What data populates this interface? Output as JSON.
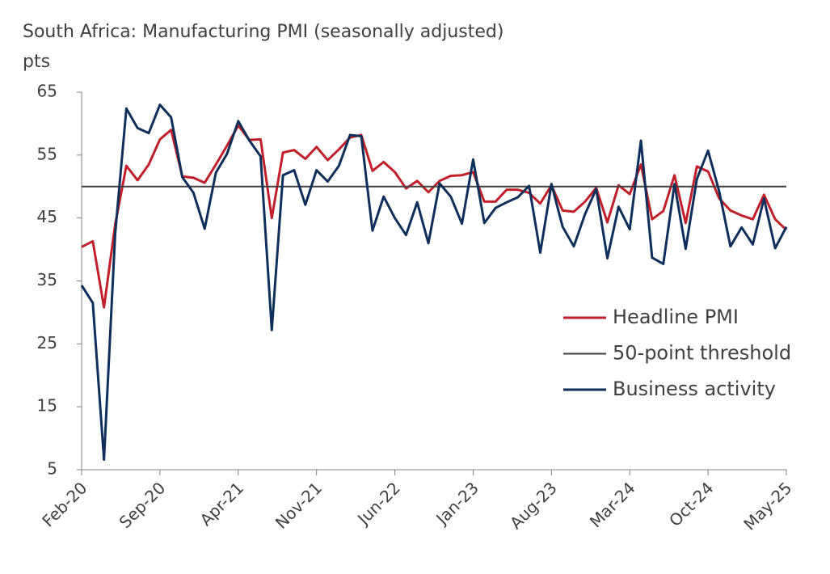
{
  "chart_data": {
    "type": "line",
    "title": "South Africa: Manufacturing PMI (seasonally adjusted)",
    "y_label": "pts",
    "categories": [
      "Feb-20",
      null,
      null,
      null,
      null,
      null,
      null,
      "Sep-20",
      null,
      null,
      null,
      null,
      null,
      null,
      "Apr-21",
      null,
      null,
      null,
      null,
      null,
      null,
      "Nov-21",
      null,
      null,
      null,
      null,
      null,
      null,
      "Jun-22",
      null,
      null,
      null,
      null,
      null,
      null,
      "Jan-23",
      null,
      null,
      null,
      null,
      null,
      null,
      "Aug-23",
      null,
      null,
      null,
      null,
      null,
      null,
      "Mar-24",
      null,
      null,
      null,
      null,
      null,
      null,
      "Oct-24",
      null,
      null,
      null,
      null,
      null,
      null,
      "May-25"
    ],
    "series": [
      {
        "name": "Headline PMI",
        "color": "#c0202a",
        "values": [
          40.4,
          41.3,
          30.8,
          44,
          53.3,
          51,
          53.5,
          57.5,
          59,
          51.6,
          51.4,
          50.6,
          53.5,
          56.5,
          59.7,
          57.4,
          57.5,
          45,
          55.4,
          55.8,
          54.4,
          56.3,
          54.2,
          55.9,
          57.8,
          58.2,
          52.5,
          53.9,
          52.3,
          49.7,
          50.9,
          49.1,
          50.9,
          51.7,
          51.8,
          52.3,
          47.6,
          47.6,
          49.5,
          49.5,
          49,
          47.3,
          50.2,
          46.2,
          46,
          47.6,
          49.8,
          44.3,
          50.2,
          48.8,
          53.5,
          44.8,
          46.1,
          51.8,
          44.2,
          53.2,
          52.4,
          48.1,
          46.2,
          45.4,
          44.8,
          48.7,
          44.8,
          43.1
        ]
      },
      {
        "name": "50-point threshold",
        "color": "#404040",
        "values": [
          50,
          50,
          50,
          50,
          50,
          50,
          50,
          50,
          50,
          50,
          50,
          50,
          50,
          50,
          50,
          50,
          50,
          50,
          50,
          50,
          50,
          50,
          50,
          50,
          50,
          50,
          50,
          50,
          50,
          50,
          50,
          50,
          50,
          50,
          50,
          50,
          50,
          50,
          50,
          50,
          50,
          50,
          50,
          50,
          50,
          50,
          50,
          50,
          50,
          50,
          50,
          50,
          50,
          50,
          50,
          50,
          50,
          50,
          50,
          50,
          50,
          50,
          50,
          50
        ]
      },
      {
        "name": "Business activity",
        "color": "#0d2f5a",
        "values": [
          34.3,
          31.5,
          6.6,
          42.5,
          62.4,
          59.3,
          58.5,
          63,
          61,
          51.5,
          49,
          43.3,
          52.2,
          55.2,
          60.4,
          57.3,
          54.8,
          27.2,
          51.8,
          52.6,
          47.1,
          52.6,
          50.8,
          53.3,
          58.2,
          58,
          43,
          48.4,
          45,
          42.3,
          47.5,
          41,
          50.5,
          48.4,
          44.1,
          54.3,
          44.2,
          46.6,
          47.5,
          48.3,
          50.1,
          39.5,
          50.4,
          43.6,
          40.5,
          45.6,
          49.6,
          38.6,
          46.8,
          43.2,
          57.3,
          38.7,
          37.7,
          50.4,
          40.1,
          51.2,
          55.7,
          49.2,
          40.5,
          43.5,
          40.8,
          48.1,
          40.2,
          43.6
        ]
      }
    ],
    "ylim": [
      5,
      65
    ],
    "yticks": [
      5,
      15,
      25,
      35,
      45,
      55,
      65
    ],
    "grid": false,
    "legend": "right"
  }
}
